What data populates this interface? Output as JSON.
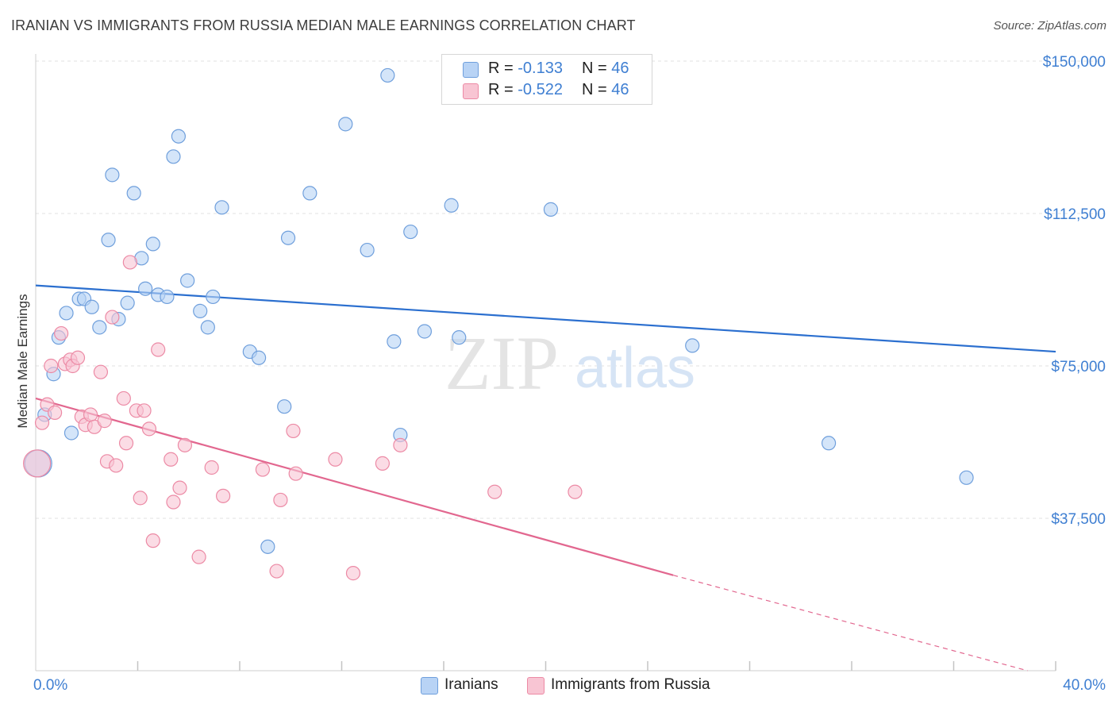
{
  "title": "IRANIAN VS IMMIGRANTS FROM RUSSIA MEDIAN MALE EARNINGS CORRELATION CHART",
  "source": "Source: ZipAtlas.com",
  "watermark": {
    "zip": "ZIP",
    "atlas": "atlas"
  },
  "colors": {
    "blue_fill": "#b8d3f5",
    "blue_stroke": "#6f9fdc",
    "blue_line": "#2b6fcf",
    "pink_fill": "#f8c5d3",
    "pink_stroke": "#ec8aa5",
    "pink_line": "#e2678f",
    "tick_text": "#3f7fd2",
    "grid": "#e2e2e2"
  },
  "legend": {
    "rows": [
      {
        "swatch": "blue",
        "r_label": "R = ",
        "r_value": "-0.133",
        "n_label": "N = ",
        "n_value": "46"
      },
      {
        "swatch": "pink",
        "r_label": "R = ",
        "r_value": "-0.522",
        "n_label": "N = ",
        "n_value": "46"
      }
    ]
  },
  "bottom_legend": [
    {
      "swatch": "blue",
      "label": "Iranians"
    },
    {
      "swatch": "pink",
      "label": "Immigrants from Russia"
    }
  ],
  "chart_data": {
    "type": "scatter",
    "xlabel": "",
    "ylabel": "Median Male Earnings",
    "xlim": [
      0,
      40
    ],
    "ylim": [
      0,
      155000
    ],
    "x_tick_labels": [
      {
        "value": 0,
        "label": "0.0%"
      },
      {
        "value": 40,
        "label": "40.0%"
      }
    ],
    "x_minor_ticks": [
      4,
      8,
      12,
      16,
      20,
      24,
      28,
      32,
      36,
      40
    ],
    "y_ticks": [
      {
        "value": 150000,
        "label": "$150,000"
      },
      {
        "value": 112500,
        "label": "$112,500"
      },
      {
        "value": 75000,
        "label": "$75,000"
      },
      {
        "value": 37500,
        "label": "$37,500"
      }
    ],
    "series": [
      {
        "name": "Iranians",
        "color": "blue",
        "trend": {
          "x0": 0,
          "y0": 94800,
          "x1": 40,
          "y1": 78500,
          "dashed_to": null
        },
        "points": [
          {
            "x": 0.1,
            "y": 51000,
            "big": true
          },
          {
            "x": 0.35,
            "y": 63000
          },
          {
            "x": 0.7,
            "y": 73000
          },
          {
            "x": 0.9,
            "y": 82000
          },
          {
            "x": 1.2,
            "y": 88000
          },
          {
            "x": 1.4,
            "y": 58500
          },
          {
            "x": 1.7,
            "y": 91500
          },
          {
            "x": 1.9,
            "y": 91500
          },
          {
            "x": 2.2,
            "y": 89500
          },
          {
            "x": 2.5,
            "y": 84500
          },
          {
            "x": 2.85,
            "y": 106000
          },
          {
            "x": 3.0,
            "y": 122000
          },
          {
            "x": 3.25,
            "y": 86500
          },
          {
            "x": 3.6,
            "y": 90500
          },
          {
            "x": 3.85,
            "y": 117500
          },
          {
            "x": 4.15,
            "y": 101500
          },
          {
            "x": 4.3,
            "y": 94000
          },
          {
            "x": 4.6,
            "y": 105000
          },
          {
            "x": 4.8,
            "y": 92500
          },
          {
            "x": 5.15,
            "y": 92000
          },
          {
            "x": 5.4,
            "y": 126500
          },
          {
            "x": 5.6,
            "y": 131500
          },
          {
            "x": 5.95,
            "y": 96000
          },
          {
            "x": 6.45,
            "y": 88500
          },
          {
            "x": 6.75,
            "y": 84500
          },
          {
            "x": 6.95,
            "y": 92000
          },
          {
            "x": 7.3,
            "y": 114000
          },
          {
            "x": 8.4,
            "y": 78500
          },
          {
            "x": 8.75,
            "y": 77000
          },
          {
            "x": 9.1,
            "y": 30500
          },
          {
            "x": 9.75,
            "y": 65000
          },
          {
            "x": 9.9,
            "y": 106500
          },
          {
            "x": 10.75,
            "y": 117500
          },
          {
            "x": 12.15,
            "y": 134500
          },
          {
            "x": 13.0,
            "y": 103500
          },
          {
            "x": 13.8,
            "y": 146500
          },
          {
            "x": 14.05,
            "y": 81000
          },
          {
            "x": 14.3,
            "y": 58000
          },
          {
            "x": 14.7,
            "y": 108000
          },
          {
            "x": 15.25,
            "y": 83500
          },
          {
            "x": 16.3,
            "y": 114500
          },
          {
            "x": 16.6,
            "y": 82000
          },
          {
            "x": 20.2,
            "y": 113500
          },
          {
            "x": 25.75,
            "y": 80000
          },
          {
            "x": 31.1,
            "y": 56000
          },
          {
            "x": 36.5,
            "y": 47500
          }
        ]
      },
      {
        "name": "Immigrants from Russia",
        "color": "pink",
        "trend": {
          "x0": 0,
          "y0": 67000,
          "x1": 25.0,
          "y1": 23500,
          "dashed_to": {
            "x": 38.9,
            "y": 0
          }
        },
        "points": [
          {
            "x": 0.05,
            "y": 51000,
            "big": true
          },
          {
            "x": 0.25,
            "y": 61000
          },
          {
            "x": 0.45,
            "y": 65500
          },
          {
            "x": 0.6,
            "y": 75000
          },
          {
            "x": 0.75,
            "y": 63500
          },
          {
            "x": 1.0,
            "y": 83000
          },
          {
            "x": 1.15,
            "y": 75500
          },
          {
            "x": 1.35,
            "y": 76500
          },
          {
            "x": 1.45,
            "y": 75000
          },
          {
            "x": 1.65,
            "y": 77000
          },
          {
            "x": 1.8,
            "y": 62500
          },
          {
            "x": 1.95,
            "y": 60500
          },
          {
            "x": 2.15,
            "y": 63000
          },
          {
            "x": 2.3,
            "y": 60000
          },
          {
            "x": 2.55,
            "y": 73500
          },
          {
            "x": 2.7,
            "y": 61500
          },
          {
            "x": 2.8,
            "y": 51500
          },
          {
            "x": 3.0,
            "y": 87000
          },
          {
            "x": 3.15,
            "y": 50500
          },
          {
            "x": 3.45,
            "y": 67000
          },
          {
            "x": 3.55,
            "y": 56000
          },
          {
            "x": 3.7,
            "y": 100500
          },
          {
            "x": 3.95,
            "y": 64000
          },
          {
            "x": 4.1,
            "y": 42500
          },
          {
            "x": 4.25,
            "y": 64000
          },
          {
            "x": 4.45,
            "y": 59500
          },
          {
            "x": 4.6,
            "y": 32000
          },
          {
            "x": 4.8,
            "y": 79000
          },
          {
            "x": 5.3,
            "y": 52000
          },
          {
            "x": 5.4,
            "y": 41500
          },
          {
            "x": 5.65,
            "y": 45000
          },
          {
            "x": 5.85,
            "y": 55500
          },
          {
            "x": 6.4,
            "y": 28000
          },
          {
            "x": 6.9,
            "y": 50000
          },
          {
            "x": 7.35,
            "y": 43000
          },
          {
            "x": 8.9,
            "y": 49500
          },
          {
            "x": 9.45,
            "y": 24500
          },
          {
            "x": 9.6,
            "y": 42000
          },
          {
            "x": 10.1,
            "y": 59000
          },
          {
            "x": 10.2,
            "y": 48500
          },
          {
            "x": 11.75,
            "y": 52000
          },
          {
            "x": 12.45,
            "y": 24000
          },
          {
            "x": 13.6,
            "y": 51000
          },
          {
            "x": 14.3,
            "y": 55500
          },
          {
            "x": 18.0,
            "y": 44000
          },
          {
            "x": 21.15,
            "y": 44000
          }
        ]
      }
    ]
  }
}
